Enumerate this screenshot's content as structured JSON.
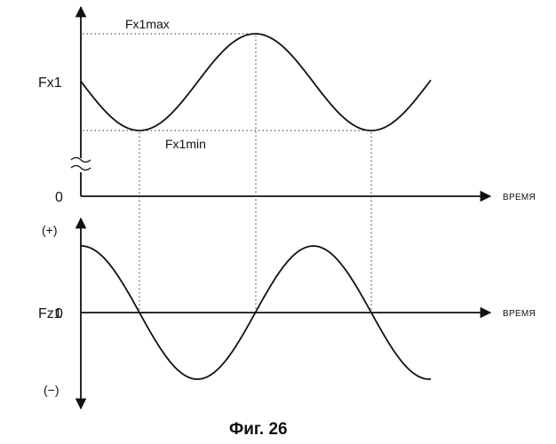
{
  "top_plot": {
    "ylabel": "Fx1",
    "origin_label": "0",
    "xlabel": "ВРЕМЯ",
    "max_label": "Fx1max",
    "min_label": "Fx1min"
  },
  "bottom_plot": {
    "ylabel": "Fz1",
    "origin_label": "0",
    "xlabel": "ВРЕМЯ",
    "plus_label": "(+)",
    "minus_label": "(−)"
  },
  "caption": "Фиг. 26"
}
